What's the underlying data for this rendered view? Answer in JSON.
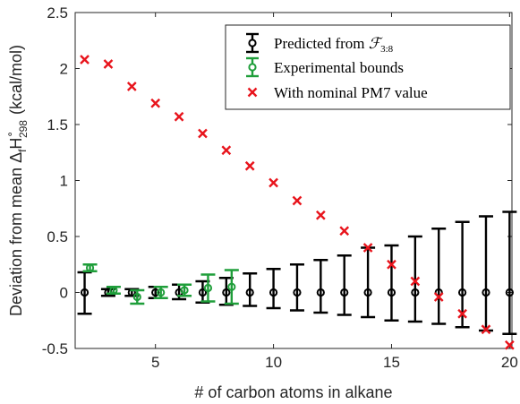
{
  "chart_data": {
    "type": "scatter",
    "xlabel": "# of carbon atoms in alkane",
    "ylabel": "Deviation from mean ΔfH°298 (kcal/mol)",
    "ylabel_parts": {
      "prefix": "Deviation from mean Δ",
      "sub1": "f",
      "main": "H",
      "sup": "∘",
      "sub2": "298",
      "suffix": "(kcal/mol)"
    },
    "xlim": [
      1.6,
      20.1
    ],
    "ylim": [
      -0.5,
      2.5
    ],
    "x_ticks": [
      5,
      10,
      15,
      20
    ],
    "y_ticks": [
      -0.5,
      0,
      0.5,
      1,
      1.5,
      2,
      2.5
    ],
    "x_tick_labels": [
      "5",
      "10",
      "15",
      "20"
    ],
    "y_tick_labels": [
      "-0.5",
      "0",
      "0.5",
      "1",
      "1.5",
      "2",
      "2.5"
    ],
    "grid": false,
    "legend_position": "top-right",
    "series": [
      {
        "name": "Predicted from F3:8",
        "legend_label": "Predicted from ",
        "legend_math": "ℱ",
        "legend_math_sub": "3:8",
        "kind": "errorbar",
        "color": "#000000",
        "x": [
          2,
          3,
          4,
          5,
          6,
          7,
          8,
          9,
          10,
          11,
          12,
          13,
          14,
          15,
          16,
          17,
          18,
          19,
          20
        ],
        "y": [
          0,
          0,
          0,
          0,
          0,
          0,
          0,
          0,
          0,
          0,
          0,
          0,
          0,
          0,
          0,
          0,
          0,
          0,
          0
        ],
        "err": [
          0.18,
          0.03,
          0.03,
          0.05,
          0.07,
          0.1,
          0.13,
          0.17,
          0.21,
          0.25,
          0.29,
          0.33,
          0.4,
          0.42,
          0.5,
          0.57,
          0.63,
          0.68,
          0.72
        ],
        "err_low": [
          0.19,
          0.03,
          0.03,
          0.05,
          0.06,
          0.09,
          0.11,
          0.12,
          0.14,
          0.16,
          0.18,
          0.2,
          0.22,
          0.25,
          0.26,
          0.28,
          0.31,
          0.34,
          0.37
        ]
      },
      {
        "name": "Experimental bounds",
        "kind": "errorbar",
        "color": "#1f9e3a",
        "x": [
          2,
          3,
          4,
          5,
          6,
          7,
          8
        ],
        "y": [
          0.22,
          0.02,
          -0.04,
          0.0,
          0.02,
          0.04,
          0.05
        ],
        "err": [
          0.03,
          0.03,
          0.06,
          0.05,
          0.05,
          0.12,
          0.15
        ]
      },
      {
        "name": "With nominal PM7 value",
        "kind": "cross",
        "color": "#e8141c",
        "x": [
          2,
          3,
          4,
          5,
          6,
          7,
          8,
          9,
          10,
          11,
          12,
          13,
          14,
          15,
          16,
          17,
          18,
          19,
          20
        ],
        "y": [
          2.08,
          2.04,
          1.84,
          1.69,
          1.57,
          1.42,
          1.27,
          1.13,
          0.98,
          0.82,
          0.69,
          0.55,
          0.4,
          0.25,
          0.1,
          -0.04,
          -0.19,
          -0.33,
          -0.47
        ]
      }
    ]
  }
}
